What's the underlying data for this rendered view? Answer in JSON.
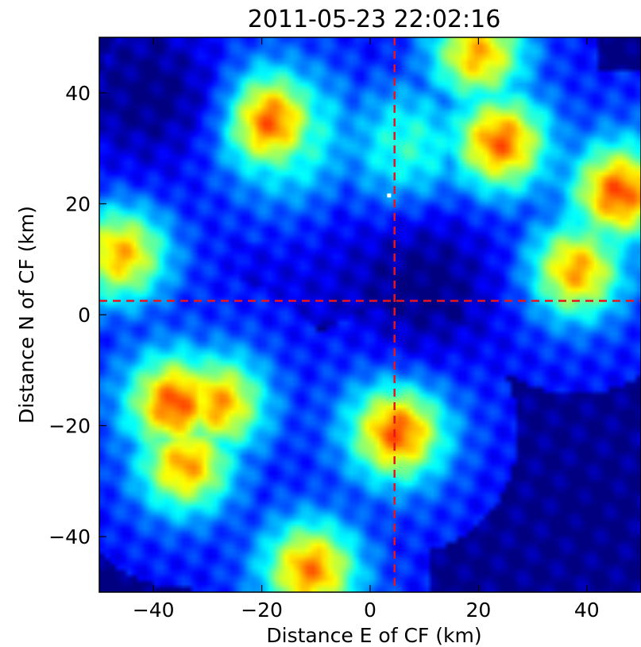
{
  "chart_data": {
    "type": "heatmap",
    "title": "2011-05-23 22:02:16",
    "xlabel": "Distance E of CF (km)",
    "ylabel": "Distance N of CF (km)",
    "xlim": [
      -50,
      50
    ],
    "ylim": [
      -50,
      50
    ],
    "xticks": [
      -40,
      -20,
      0,
      20,
      40
    ],
    "yticks": [
      -40,
      -20,
      0,
      20,
      40
    ],
    "xtick_labels": [
      "−40",
      "−20",
      "0",
      "20",
      "40"
    ],
    "ytick_labels": [
      "−40",
      "−20",
      "0",
      "20",
      "40"
    ],
    "colormap": "jet",
    "grid": false,
    "crosshair": {
      "x": 4.5,
      "y": 2.5,
      "color": "#e8141e",
      "style": "dashed"
    },
    "marker": {
      "x": 3.5,
      "y": 21.5,
      "color": "#ffffff"
    },
    "field_description": "reflectivity-like intensity, 0 (dark blue) to 1 (red)",
    "features": [
      {
        "name": "northwest echo mass",
        "x": -16,
        "y": 33,
        "value": 0.48
      },
      {
        "name": "northwest core",
        "x": -19,
        "y": 35,
        "value": 0.82
      },
      {
        "name": "north central band",
        "x": 7,
        "y": 30,
        "value": 0.42
      },
      {
        "name": "northeast cell",
        "x": 24,
        "y": 31,
        "value": 0.78
      },
      {
        "name": "east edge cell",
        "x": 46,
        "y": 22,
        "value": 0.8
      },
      {
        "name": "east cluster",
        "x": 38,
        "y": 8,
        "value": 0.72
      },
      {
        "name": "west edge cell",
        "x": -46,
        "y": 11,
        "value": 0.7
      },
      {
        "name": "southwest band",
        "x": -28,
        "y": -16,
        "value": 0.72
      },
      {
        "name": "southwest core",
        "x": -36,
        "y": -16,
        "value": 0.8
      },
      {
        "name": "south central cell",
        "x": 5,
        "y": -21,
        "value": 0.8
      },
      {
        "name": "south cell",
        "x": -11,
        "y": -46,
        "value": 0.75
      },
      {
        "name": "southwest small cell",
        "x": -34,
        "y": -27,
        "value": 0.72
      },
      {
        "name": "top edge cell",
        "x": 20,
        "y": 47,
        "value": 0.7
      },
      {
        "name": "clear corridor",
        "x": 10,
        "y": 5,
        "value": 0.0
      },
      {
        "name": "northwest clear area",
        "x": -40,
        "y": 40,
        "value": 0.0
      },
      {
        "name": "southeast clear area",
        "x": 40,
        "y": -35,
        "value": 0.05
      }
    ]
  }
}
